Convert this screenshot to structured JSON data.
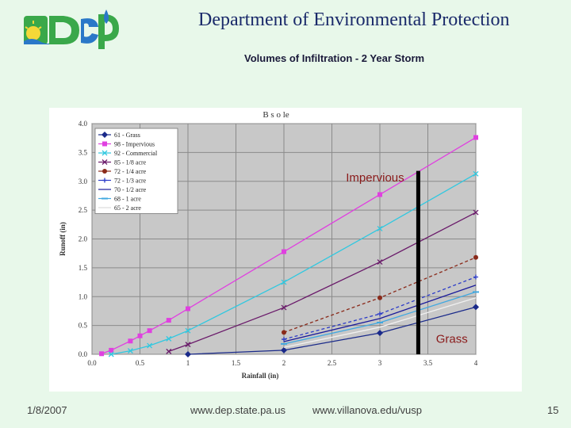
{
  "header": {
    "title": "Department of Environmental Protection"
  },
  "slide": {
    "subtitle": "Volumes of Infiltration - 2 Year Storm"
  },
  "footer": {
    "date": "1/8/2007",
    "url_dep": "www.dep.state.pa.us",
    "url_villanova": "www.villanova.edu/vusp",
    "page_number": "15"
  },
  "colors": {
    "slide_background": "#e8f8ea",
    "plot_background": "#c8c8c8",
    "title_color": "#1a2a6a"
  },
  "chart_data": {
    "type": "line",
    "title": "B s o le",
    "xlabel": "Rainfall (in)",
    "ylabel": "Runoff (in)",
    "xlim": [
      0,
      4
    ],
    "ylim": [
      0,
      4
    ],
    "x_ticks": [
      "0.0",
      "0.5",
      "1",
      "1.5",
      "2",
      "2.5",
      "3",
      "3.5",
      "4"
    ],
    "y_ticks": [
      "0.0",
      "0.5",
      "1.0",
      "1.5",
      "2.0",
      "2.5",
      "3.0",
      "3.5",
      "4.0"
    ],
    "grid": true,
    "legend_position": "top-left",
    "series": [
      {
        "name": "61 - Grass",
        "color": "#1a2a8a",
        "marker": "diamond",
        "dash": "",
        "x": [
          1,
          2,
          3,
          4
        ],
        "y": [
          0.0,
          0.07,
          0.37,
          0.82
        ]
      },
      {
        "name": "98 - Impervious",
        "color": "#e040e0",
        "marker": "square",
        "dash": "",
        "x": [
          0.1,
          0.2,
          0.4,
          0.5,
          0.6,
          0.8,
          1,
          2,
          3,
          4
        ],
        "y": [
          0.01,
          0.07,
          0.23,
          0.32,
          0.41,
          0.59,
          0.79,
          1.78,
          2.77,
          3.76
        ]
      },
      {
        "name": "92 - Commercial",
        "color": "#30c8e0",
        "marker": "x",
        "dash": "",
        "x": [
          0.2,
          0.4,
          0.6,
          0.8,
          1,
          2,
          3,
          4
        ],
        "y": [
          0.0,
          0.06,
          0.15,
          0.27,
          0.41,
          1.25,
          2.18,
          3.13
        ]
      },
      {
        "name": "85 - 1/8 acre",
        "color": "#6a1a6a",
        "marker": "x",
        "dash": "",
        "x": [
          0.8,
          1,
          2,
          3,
          4
        ],
        "y": [
          0.05,
          0.17,
          0.81,
          1.6,
          2.46
        ]
      },
      {
        "name": "72 - 1/4 acre",
        "color": "#8a2a1a",
        "marker": "circle",
        "dash": "4,3",
        "x": [
          2,
          3,
          4
        ],
        "y": [
          0.38,
          0.98,
          1.68
        ]
      },
      {
        "name": "72 - 1/3 acre",
        "color": "#2a3ac8",
        "marker": "plus",
        "dash": "4,3",
        "x": [
          2,
          3,
          4
        ],
        "y": [
          0.26,
          0.7,
          1.34
        ]
      },
      {
        "name": "70 - 1/2 acre",
        "color": "#1a1a9a",
        "marker": "none",
        "dash": "",
        "x": [
          2,
          3,
          4
        ],
        "y": [
          0.22,
          0.62,
          1.2
        ]
      },
      {
        "name": "68 - 1 acre",
        "color": "#40a8e0",
        "marker": "dash",
        "dash": "",
        "x": [
          2,
          3,
          4
        ],
        "y": [
          0.18,
          0.55,
          1.08
        ]
      },
      {
        "name": "65 - 2 acre",
        "color": "#f0f0f0",
        "marker": "none",
        "dash": "",
        "x": [
          2,
          3,
          4
        ],
        "y": [
          0.12,
          0.47,
          0.98
        ]
      }
    ],
    "annotations": [
      {
        "text": "Impervious",
        "x": 2.95,
        "y": 3.0,
        "color": "#8a1a1a"
      },
      {
        "text": "Grass",
        "x": 3.75,
        "y": 0.2,
        "color": "#8a1a1a"
      }
    ],
    "vertical_marker": {
      "x": 3.4,
      "y_from": 0.0,
      "y_to": 3.18
    }
  }
}
